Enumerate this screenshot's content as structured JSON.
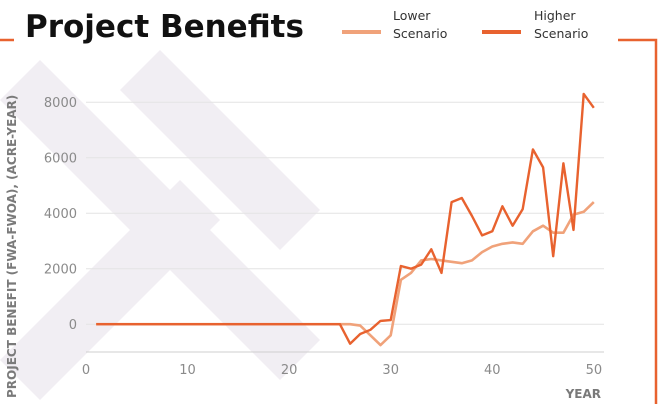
{
  "chart_data": {
    "type": "line",
    "title": "Project Benefits",
    "xlabel": "YEAR",
    "ylabel": "PROJECT BENEFIT (FWA-FWOA), (ACRE-YEAR)",
    "xlim": [
      0,
      51
    ],
    "ylim": [
      -1000,
      8800
    ],
    "xticks": [
      0,
      10,
      20,
      30,
      40,
      50
    ],
    "yticks": [
      0,
      2000,
      4000,
      6000,
      8000
    ],
    "legend_position": "top",
    "grid": "horizontal",
    "series": [
      {
        "name": "Lower Scenario",
        "color": "#f0a27a",
        "x": [
          1,
          2,
          3,
          4,
          5,
          6,
          7,
          8,
          9,
          10,
          11,
          12,
          13,
          14,
          15,
          16,
          17,
          18,
          19,
          20,
          21,
          22,
          23,
          24,
          25,
          26,
          27,
          28,
          29,
          30,
          31,
          32,
          33,
          34,
          35,
          36,
          37,
          38,
          39,
          40,
          41,
          42,
          43,
          44,
          45,
          46,
          47,
          48,
          49,
          50
        ],
        "values": [
          0,
          0,
          0,
          0,
          0,
          0,
          0,
          0,
          0,
          0,
          0,
          0,
          0,
          0,
          0,
          0,
          0,
          0,
          0,
          0,
          0,
          0,
          0,
          0,
          0,
          0,
          -50,
          -400,
          -750,
          -400,
          1600,
          1850,
          2300,
          2350,
          2300,
          2250,
          2200,
          2300,
          2600,
          2800,
          2900,
          2950,
          2900,
          3350,
          3550,
          3300,
          3300,
          3950,
          4050,
          4400
        ]
      },
      {
        "name": "Higher Scenario",
        "color": "#e8622f",
        "x": [
          1,
          2,
          3,
          4,
          5,
          6,
          7,
          8,
          9,
          10,
          11,
          12,
          13,
          14,
          15,
          16,
          17,
          18,
          19,
          20,
          21,
          22,
          23,
          24,
          25,
          26,
          27,
          28,
          29,
          30,
          31,
          32,
          33,
          34,
          35,
          36,
          37,
          38,
          39,
          40,
          41,
          42,
          43,
          44,
          45,
          46,
          47,
          48,
          49,
          50
        ],
        "values": [
          0,
          0,
          0,
          0,
          0,
          0,
          0,
          0,
          0,
          0,
          0,
          0,
          0,
          0,
          0,
          0,
          0,
          0,
          0,
          0,
          0,
          0,
          0,
          0,
          0,
          -700,
          -350,
          -200,
          120,
          150,
          2100,
          2000,
          2150,
          2700,
          1850,
          4400,
          4550,
          3900,
          3200,
          3350,
          4250,
          3550,
          4150,
          6300,
          5650,
          2450,
          5800,
          3400,
          8300,
          7800
        ]
      }
    ]
  },
  "colors": {
    "frame": "#e8622f",
    "grid": "#e4e4e4",
    "watermark": "#f1eef3"
  }
}
